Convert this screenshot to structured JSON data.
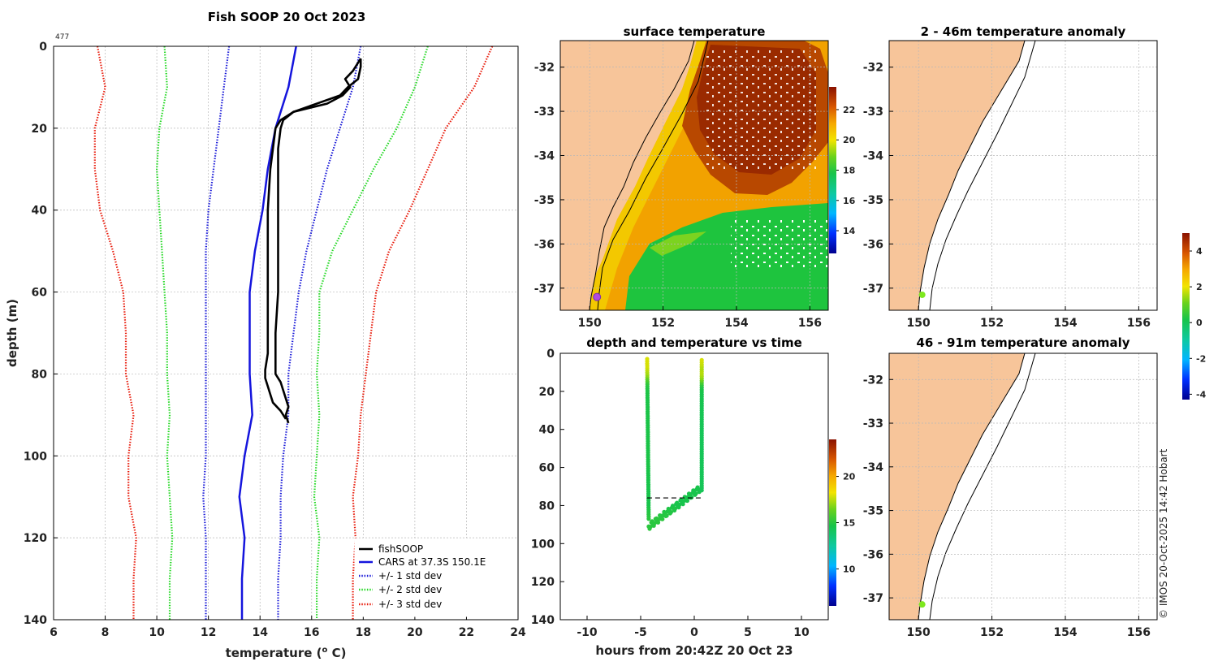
{
  "figure": {
    "title": "Fish SOOP 20 Oct 2023",
    "tag": "477",
    "copyright": "© IMOS 20-Oct-2025 14:42 Hobart"
  },
  "colors": {
    "fishsoop": "#000000",
    "cars": "#1515dd",
    "std1": "#1a1ad8",
    "std2": "#22d822",
    "std3": "#e81a0a",
    "land": "#f9c89a",
    "anomaly_dot": "#7ee81e",
    "sst_dot": "#b04ae0"
  },
  "chart_data": [
    {
      "id": "profile",
      "type": "line",
      "title": "Fish SOOP 20 Oct 2023",
      "xlabel": "temperature (",
      "xlabel_sup": "o",
      "xlabel_end": " C)",
      "ylabel": "depth (m)",
      "xlim": [
        6,
        24
      ],
      "ylim": [
        140,
        0
      ],
      "xticks": [
        "6",
        "8",
        "10",
        "12",
        "14",
        "16",
        "18",
        "20",
        "22",
        "24"
      ],
      "yticks": [
        "0",
        "20",
        "40",
        "60",
        "80",
        "100",
        "120",
        "140"
      ],
      "legend": [
        "fishSOOP",
        "CARS at 37.3S 150.1E",
        "+/- 1 std dev",
        "+/- 2 std dev",
        "+/- 3 std dev"
      ],
      "legend_position": "bottom-right",
      "depths": [
        0,
        10,
        20,
        30,
        40,
        50,
        60,
        70,
        80,
        90,
        100,
        110,
        120,
        130,
        140
      ],
      "cars_mean": [
        15.4,
        15.1,
        14.6,
        14.3,
        14.1,
        13.8,
        13.6,
        13.6,
        13.6,
        13.7,
        13.4,
        13.2,
        13.4,
        13.3,
        13.3
      ],
      "std1_lo": [
        12.8,
        12.6,
        12.4,
        12.2,
        12.0,
        11.9,
        11.9,
        11.9,
        11.9,
        11.9,
        11.9,
        11.8,
        11.9,
        11.9,
        11.9
      ],
      "std1_hi": [
        17.9,
        17.6,
        17.1,
        16.6,
        16.2,
        15.8,
        15.5,
        15.3,
        15.1,
        15.1,
        14.9,
        14.8,
        14.8,
        14.7,
        14.7
      ],
      "std2_lo": [
        10.3,
        10.4,
        10.1,
        10.0,
        10.1,
        10.2,
        10.3,
        10.4,
        10.4,
        10.5,
        10.4,
        10.5,
        10.6,
        10.5,
        10.5
      ],
      "std2_hi": [
        20.5,
        20.0,
        19.3,
        18.4,
        17.6,
        16.8,
        16.3,
        16.3,
        16.2,
        16.3,
        16.2,
        16.1,
        16.3,
        16.2,
        16.2
      ],
      "std3_lo": [
        7.7,
        8.0,
        7.6,
        7.6,
        7.8,
        8.3,
        8.7,
        8.8,
        8.8,
        9.1,
        8.9,
        8.9,
        9.2,
        9.1,
        9.1
      ],
      "std3_hi": [
        23.0,
        22.3,
        21.2,
        20.5,
        19.8,
        19.0,
        18.5,
        18.3,
        18.1,
        17.9,
        17.8,
        17.6,
        17.7,
        17.6,
        17.6
      ],
      "fishsoop_down": {
        "depth": [
          3,
          5,
          8,
          10,
          12,
          14,
          16,
          18,
          20,
          25,
          30,
          40,
          60,
          70,
          75,
          80,
          82,
          84,
          86,
          88,
          90,
          92
        ],
        "temp": [
          17.9,
          17.9,
          17.8,
          17.4,
          17.1,
          16.2,
          15.3,
          14.9,
          14.8,
          14.7,
          14.7,
          14.7,
          14.7,
          14.6,
          14.6,
          14.6,
          14.8,
          14.9,
          15.0,
          15.1,
          15.0,
          15.1
        ]
      },
      "fishsoop_up": {
        "depth": [
          91,
          89,
          87,
          85,
          83,
          81,
          79,
          75,
          70,
          60,
          40,
          30,
          25,
          20,
          18,
          16,
          14,
          12,
          10,
          8,
          6,
          4,
          3
        ],
        "temp": [
          15.0,
          14.8,
          14.5,
          14.4,
          14.3,
          14.2,
          14.2,
          14.3,
          14.3,
          14.3,
          14.3,
          14.4,
          14.5,
          14.6,
          14.8,
          15.3,
          16.6,
          17.2,
          17.5,
          17.3,
          17.6,
          17.8,
          17.9
        ]
      }
    },
    {
      "id": "sst_map",
      "type": "heatmap",
      "title": "surface temperature",
      "xlim": [
        149.2,
        156.5
      ],
      "ylim": [
        -37.5,
        -31.4
      ],
      "xticks": [
        "150",
        "152",
        "154",
        "156"
      ],
      "yticks": [
        "-32",
        "-33",
        "-34",
        "-35",
        "-36",
        "-37"
      ],
      "colorbar_ticks": [
        "22",
        "20",
        "18",
        "16",
        "14"
      ],
      "colorbar_range": [
        12.5,
        23.5
      ],
      "site": [
        150.2,
        -37.2
      ]
    },
    {
      "id": "depth_time",
      "type": "scatter",
      "title": "depth and temperature vs time",
      "xlabel": "hours from 20:42Z 20 Oct 23",
      "xlim": [
        -12.5,
        12.5
      ],
      "ylim": [
        140,
        0
      ],
      "xticks": [
        "-10",
        "-5",
        "0",
        "5",
        "10"
      ],
      "yticks": [
        "0",
        "20",
        "40",
        "60",
        "80",
        "100",
        "120",
        "140"
      ],
      "colorbar_ticks": [
        "20",
        "15",
        "10"
      ],
      "colorbar_range": [
        6,
        24
      ],
      "mld_depth": 76,
      "cast_start_hours": -4.4,
      "cast_end_hours": 0.7
    },
    {
      "id": "anom_upper",
      "type": "heatmap",
      "title": "2 - 46m temperature anomaly",
      "xlim": [
        149.2,
        156.5
      ],
      "ylim": [
        -37.5,
        -31.4
      ],
      "xticks": [
        "150",
        "152",
        "154",
        "156"
      ],
      "yticks": [
        "-32",
        "-33",
        "-34",
        "-35",
        "-36",
        "-37"
      ],
      "site": [
        150.1,
        -37.15
      ]
    },
    {
      "id": "anom_lower",
      "type": "heatmap",
      "title": "46 - 91m temperature anomaly",
      "xlim": [
        149.2,
        156.5
      ],
      "ylim": [
        -37.5,
        -31.4
      ],
      "xticks": [
        "150",
        "152",
        "154",
        "156"
      ],
      "yticks": [
        "-32",
        "-33",
        "-34",
        "-35",
        "-36",
        "-37"
      ],
      "site": [
        150.1,
        -37.15
      ]
    },
    {
      "id": "anomaly_colorbar",
      "type": "heatmap",
      "colorbar_ticks": [
        "4",
        "2",
        "0",
        "-2",
        "-4"
      ],
      "colorbar_range": [
        -4.3,
        5.0
      ]
    }
  ]
}
